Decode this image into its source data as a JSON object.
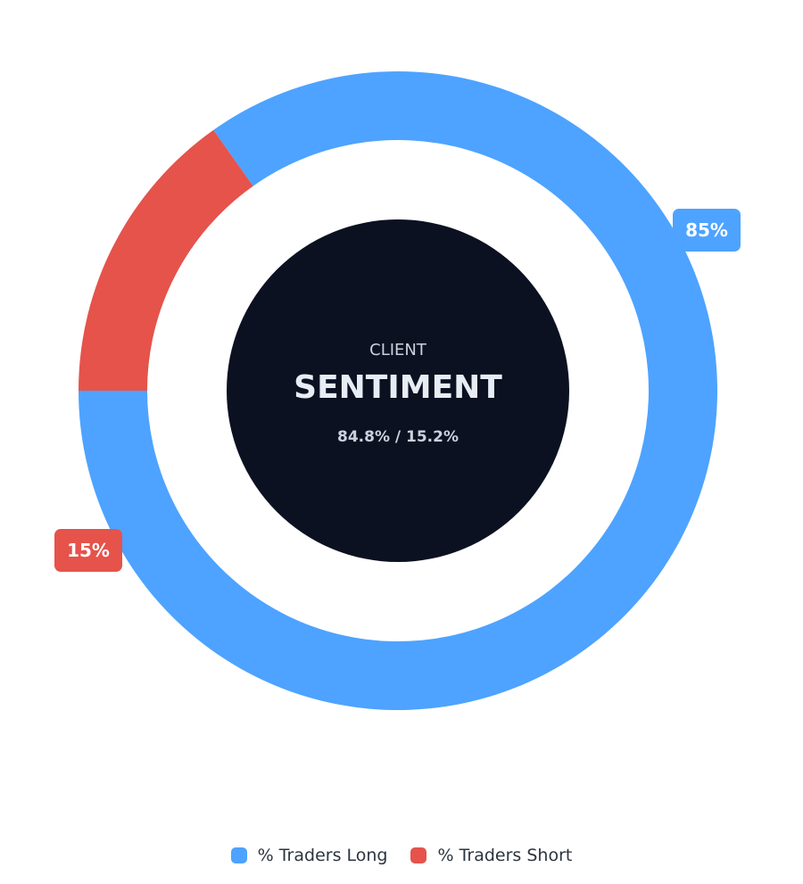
{
  "chart_data": {
    "type": "pie",
    "center_text": {
      "subtitle": "CLIENT",
      "title": "SENTIMENT",
      "detail": "84.8% / 15.2%"
    },
    "series": [
      {
        "name": "% Traders Long",
        "value": 84.8,
        "label": "85%",
        "color": "#4da3ff"
      },
      {
        "name": "% Traders Short",
        "value": 15.2,
        "label": "15%",
        "color": "#e5534b"
      }
    ],
    "legend_position": "bottom"
  },
  "colors": {
    "center_bg": "#0c1121",
    "center_text": "#e8ecf4",
    "center_subtext": "#c9d1de"
  }
}
